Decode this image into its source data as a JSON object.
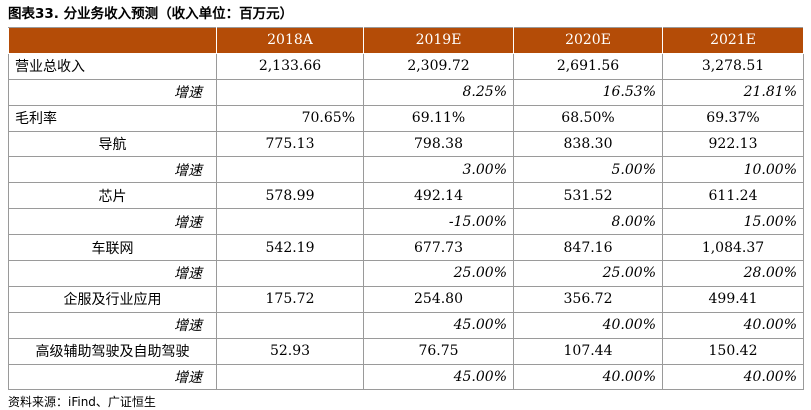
{
  "title": "图表33. 分业务收入预测（收入单位：百万元）",
  "columns": [
    "2018A",
    "2019E",
    "2020E",
    "2021E"
  ],
  "rows": [
    {
      "label": "营业总收入",
      "kind": "main",
      "values": [
        "2,133.66",
        "2,309.72",
        "2,691.56",
        "3,278.51"
      ]
    },
    {
      "label": "增速",
      "kind": "growth",
      "values": [
        "",
        "8.25%",
        "16.53%",
        "21.81%"
      ]
    },
    {
      "label": "毛利率",
      "kind": "main",
      "values": [
        "70.65%",
        "69.11%",
        "68.50%",
        "69.37%"
      ]
    },
    {
      "label": "导航",
      "kind": "sub",
      "values": [
        "775.13",
        "798.38",
        "838.30",
        "922.13"
      ]
    },
    {
      "label": "增速",
      "kind": "growth",
      "values": [
        "",
        "3.00%",
        "5.00%",
        "10.00%"
      ]
    },
    {
      "label": "芯片",
      "kind": "sub",
      "values": [
        "578.99",
        "492.14",
        "531.52",
        "611.24"
      ]
    },
    {
      "label": "增速",
      "kind": "growth",
      "values": [
        "",
        "-15.00%",
        "8.00%",
        "15.00%"
      ]
    },
    {
      "label": "车联网",
      "kind": "sub",
      "values": [
        "542.19",
        "677.73",
        "847.16",
        "1,084.37"
      ]
    },
    {
      "label": "增速",
      "kind": "growth",
      "values": [
        "",
        "25.00%",
        "25.00%",
        "28.00%"
      ]
    },
    {
      "label": "企服及行业应用",
      "kind": "sub",
      "values": [
        "175.72",
        "254.80",
        "356.72",
        "499.41"
      ]
    },
    {
      "label": "增速",
      "kind": "growth",
      "values": [
        "",
        "45.00%",
        "40.00%",
        "40.00%"
      ]
    },
    {
      "label": "高级辅助驾驶及自助驾驶",
      "kind": "sub",
      "values": [
        "52.93",
        "76.75",
        "107.44",
        "150.42"
      ]
    },
    {
      "label": "增速",
      "kind": "growth",
      "values": [
        "",
        "45.00%",
        "40.00%",
        "40.00%"
      ]
    }
  ],
  "source": "资料来源：iFind、广证恒生",
  "colors": {
    "header_bg": "#b44c07",
    "header_text": "#ffffff",
    "grid": "#9a9a9a"
  }
}
